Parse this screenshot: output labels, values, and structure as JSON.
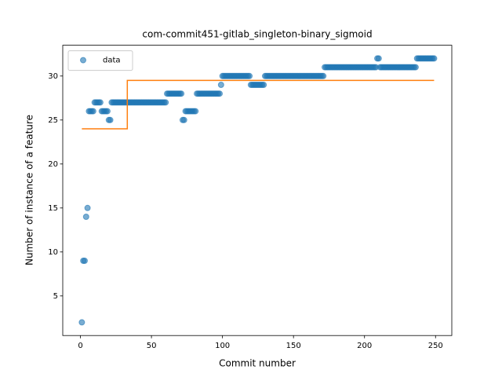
{
  "chart_data": {
    "type": "scatter",
    "title": "com-commit451-gitlab_singleton-binary_sigmoid",
    "x_label": "Commit number",
    "y_label": "Number of instance of a feature",
    "xlim": [
      -12.45,
      261.45
    ],
    "ylim": [
      0.5,
      33.5
    ],
    "xticks": [
      0,
      50,
      100,
      150,
      200,
      250
    ],
    "yticks": [
      5,
      10,
      15,
      20,
      25,
      30
    ],
    "legend": "upper left",
    "series": [
      {
        "name": "data",
        "kind": "scatter",
        "color": "#1f77b4",
        "x": [
          1,
          2,
          3,
          4,
          5,
          6,
          7,
          8,
          9,
          10,
          11,
          12,
          13,
          14,
          15,
          16,
          17,
          18,
          19,
          20,
          21,
          22,
          23,
          24,
          25,
          26,
          27,
          28,
          29,
          30,
          31,
          32,
          33,
          34,
          35,
          36,
          37,
          38,
          39,
          40,
          41,
          42,
          43,
          44,
          45,
          46,
          47,
          48,
          49,
          50,
          51,
          52,
          53,
          54,
          55,
          56,
          57,
          58,
          59,
          60,
          61,
          62,
          63,
          64,
          65,
          66,
          67,
          68,
          69,
          70,
          71,
          72,
          73,
          74,
          75,
          76,
          77,
          78,
          79,
          80,
          81,
          82,
          83,
          84,
          85,
          86,
          87,
          88,
          89,
          90,
          91,
          92,
          93,
          94,
          95,
          96,
          97,
          98,
          99,
          100,
          101,
          102,
          103,
          104,
          105,
          106,
          107,
          108,
          109,
          110,
          111,
          112,
          113,
          114,
          115,
          116,
          117,
          118,
          119,
          120,
          121,
          122,
          123,
          124,
          125,
          126,
          127,
          128,
          129,
          130,
          131,
          132,
          133,
          134,
          135,
          136,
          137,
          138,
          139,
          140,
          141,
          142,
          143,
          144,
          145,
          146,
          147,
          148,
          149,
          150,
          151,
          152,
          153,
          154,
          155,
          156,
          157,
          158,
          159,
          160,
          161,
          162,
          163,
          164,
          165,
          166,
          167,
          168,
          169,
          170,
          171,
          172,
          173,
          174,
          175,
          176,
          177,
          178,
          179,
          180,
          181,
          182,
          183,
          184,
          185,
          186,
          187,
          188,
          189,
          190,
          191,
          192,
          193,
          194,
          195,
          196,
          197,
          198,
          199,
          200,
          201,
          202,
          203,
          204,
          205,
          206,
          207,
          208,
          209,
          210,
          211,
          212,
          213,
          214,
          215,
          216,
          217,
          218,
          219,
          220,
          221,
          222,
          223,
          224,
          225,
          226,
          227,
          228,
          229,
          230,
          231,
          232,
          233,
          234,
          235,
          236,
          237,
          238,
          239,
          240,
          241,
          242,
          243,
          244,
          245,
          246,
          247,
          248,
          249
        ],
        "values": [
          2,
          9,
          9,
          14,
          15,
          26,
          26,
          26,
          26,
          27,
          27,
          27,
          27,
          27,
          26,
          26,
          26,
          26,
          26,
          25,
          25,
          27,
          27,
          27,
          27,
          27,
          27,
          27,
          27,
          27,
          27,
          27,
          27,
          27,
          27,
          27,
          27,
          27,
          27,
          27,
          27,
          27,
          27,
          27,
          27,
          27,
          27,
          27,
          27,
          27,
          27,
          27,
          27,
          27,
          27,
          27,
          27,
          27,
          27,
          27,
          28,
          28,
          28,
          28,
          28,
          28,
          28,
          28,
          28,
          28,
          28,
          25,
          25,
          26,
          26,
          26,
          26,
          26,
          26,
          26,
          26,
          28,
          28,
          28,
          28,
          28,
          28,
          28,
          28,
          28,
          28,
          28,
          28,
          28,
          28,
          28,
          28,
          28,
          29,
          30,
          30,
          30,
          30,
          30,
          30,
          30,
          30,
          30,
          30,
          30,
          30,
          30,
          30,
          30,
          30,
          30,
          30,
          30,
          30,
          29,
          29,
          29,
          29,
          29,
          29,
          29,
          29,
          29,
          29,
          30,
          30,
          30,
          30,
          30,
          30,
          30,
          30,
          30,
          30,
          30,
          30,
          30,
          30,
          30,
          30,
          30,
          30,
          30,
          30,
          30,
          30,
          30,
          30,
          30,
          30,
          30,
          30,
          30,
          30,
          30,
          30,
          30,
          30,
          30,
          30,
          30,
          30,
          30,
          30,
          30,
          30,
          31,
          31,
          31,
          31,
          31,
          31,
          31,
          31,
          31,
          31,
          31,
          31,
          31,
          31,
          31,
          31,
          31,
          31,
          31,
          31,
          31,
          31,
          31,
          31,
          31,
          31,
          31,
          31,
          31,
          31,
          31,
          31,
          31,
          31,
          31,
          31,
          31,
          32,
          32,
          31,
          31,
          31,
          31,
          31,
          31,
          31,
          31,
          31,
          31,
          31,
          31,
          31,
          31,
          31,
          31,
          31,
          31,
          31,
          31,
          31,
          31,
          31,
          31,
          31,
          31,
          32,
          32,
          32,
          32,
          32,
          32,
          32,
          32,
          32,
          32,
          32,
          32,
          32
        ]
      },
      {
        "kind": "line",
        "color": "#ff7f0e",
        "x": [
          1,
          33,
          33,
          249
        ],
        "values": [
          24,
          24,
          29.5,
          29.5
        ]
      }
    ]
  }
}
